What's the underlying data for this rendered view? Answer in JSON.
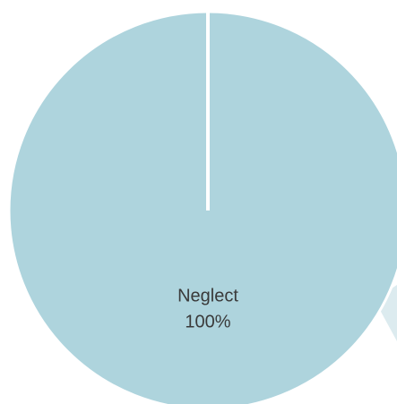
{
  "chart_data": {
    "type": "pie",
    "categories": [
      "Neglect"
    ],
    "values": [
      100
    ],
    "value_labels": [
      "100%"
    ],
    "colors": [
      "#aed4dd"
    ]
  }
}
